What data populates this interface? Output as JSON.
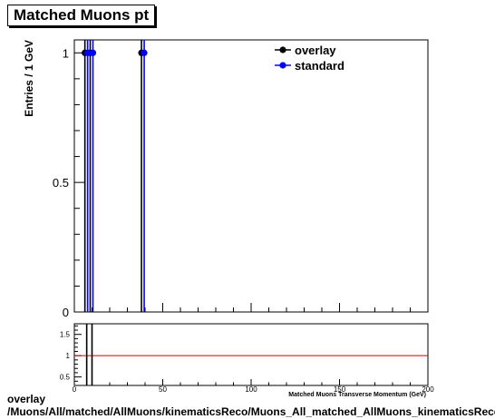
{
  "title": "Matched Muons pt",
  "footer": {
    "line1": "overlay",
    "line2": "/Muons/All/matched/AllMuons/kinematicsReco/Muons_All_matched_AllMuons_kinematicsReco_pt"
  },
  "colors": {
    "overlay": "#000000",
    "standard": "#0000ff",
    "ratio_line": "#cc0000"
  },
  "chart_data": [
    {
      "type": "scatter",
      "panel": "main",
      "ylabel": "Entries / 1 GeV",
      "xlim": [
        0,
        200
      ],
      "ylim": [
        0,
        1.05
      ],
      "yticks": [
        0,
        0.5,
        1
      ],
      "ytick_labels": [
        "0",
        "0.5",
        "1"
      ],
      "series": [
        {
          "name": "overlay",
          "x": [
            7,
            10,
            39
          ],
          "y": [
            1,
            1,
            1
          ],
          "y_err": [
            1,
            1,
            1
          ]
        },
        {
          "name": "standard",
          "x": [
            7,
            10,
            39
          ],
          "y": [
            1,
            1,
            1
          ],
          "y_err": [
            1,
            1,
            1
          ]
        }
      ],
      "legend": {
        "position": "top-right",
        "entries": [
          "overlay",
          "standard"
        ]
      }
    },
    {
      "type": "line",
      "panel": "ratio",
      "xlabel": "Matched Muons Transverse Momentum (GeV)",
      "xlim": [
        0,
        200
      ],
      "ylim": [
        0.3,
        1.75
      ],
      "xticks": [
        0,
        50,
        100,
        150,
        200
      ],
      "xtick_labels": [
        "0",
        "50",
        "100",
        "150",
        "200"
      ],
      "yticks": [
        0.5,
        1,
        1.5
      ],
      "ytick_labels": [
        "0.5",
        "1",
        "1.5"
      ],
      "reference_line": 1,
      "series": [
        {
          "name": "overlay/standard",
          "x": [
            7,
            10
          ],
          "y": [
            1,
            1
          ]
        }
      ]
    }
  ]
}
